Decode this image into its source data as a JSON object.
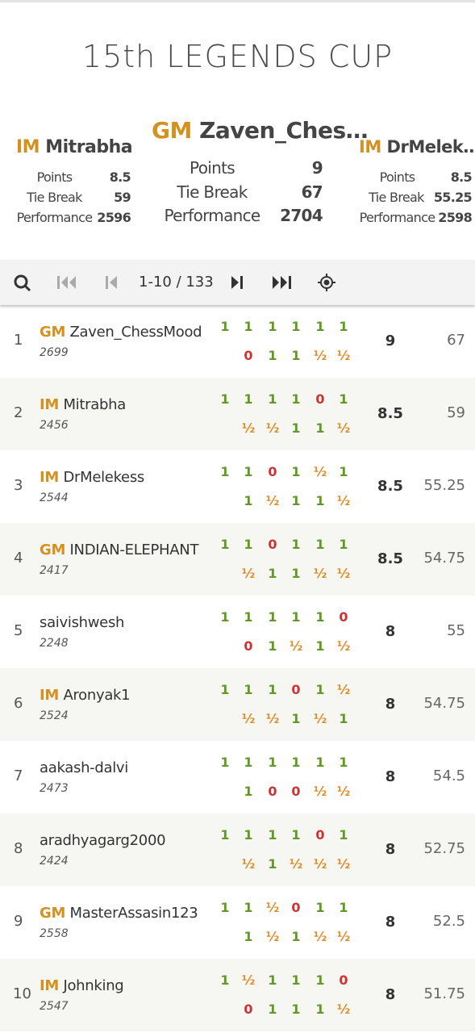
{
  "title": "15th LEGENDS CUP",
  "podium": [
    {
      "title": "IM",
      "name": "Mitrabha",
      "stats": [
        {
          "label": "Points",
          "value": 8.5
        },
        {
          "label": "Tie Break",
          "value": 59
        },
        {
          "label": "Performance",
          "value": 2596
        }
      ]
    },
    {
      "title": "GM",
      "name": "Zaven_Ches…",
      "stats": [
        {
          "label": "Points",
          "value": 9
        },
        {
          "label": "Tie Break",
          "value": 67
        },
        {
          "label": "Performance",
          "value": 2704
        }
      ]
    },
    {
      "title": "IM",
      "name": "DrMelek…",
      "stats": [
        {
          "label": "Points",
          "value": 8.5
        },
        {
          "label": "Tie Break",
          "value": 55.25
        },
        {
          "label": "Performance",
          "value": 2598
        }
      ]
    }
  ],
  "pager": {
    "range": "1-10 / 133"
  },
  "rows": [
    {
      "rank": 1,
      "title": "GM",
      "name": "Zaven_ChessMood",
      "rating": 2699,
      "results": [
        [
          "1",
          "1",
          "1",
          "1",
          "1",
          "1"
        ],
        [
          "0",
          "1",
          "1",
          "½",
          "½"
        ]
      ],
      "points": 9,
      "tiebreak": 67
    },
    {
      "rank": 2,
      "title": "IM",
      "name": "Mitrabha",
      "rating": 2456,
      "results": [
        [
          "1",
          "1",
          "1",
          "1",
          "0",
          "1"
        ],
        [
          "½",
          "½",
          "1",
          "1",
          "½"
        ]
      ],
      "points": 8.5,
      "tiebreak": 59
    },
    {
      "rank": 3,
      "title": "IM",
      "name": "DrMelekess",
      "rating": 2544,
      "results": [
        [
          "1",
          "1",
          "0",
          "1",
          "½",
          "1"
        ],
        [
          "1",
          "½",
          "1",
          "1",
          "½"
        ]
      ],
      "points": 8.5,
      "tiebreak": 55.25
    },
    {
      "rank": 4,
      "title": "GM",
      "name": "INDIAN-ELEPHANT",
      "rating": 2417,
      "results": [
        [
          "1",
          "1",
          "0",
          "1",
          "1",
          "1"
        ],
        [
          "½",
          "1",
          "1",
          "½",
          "½"
        ]
      ],
      "points": 8.5,
      "tiebreak": 54.75
    },
    {
      "rank": 5,
      "name": "saivishwesh",
      "rating": 2248,
      "results": [
        [
          "1",
          "1",
          "1",
          "1",
          "1",
          "0"
        ],
        [
          "0",
          "1",
          "½",
          "1",
          "½"
        ]
      ],
      "points": 8,
      "tiebreak": 55
    },
    {
      "rank": 6,
      "title": "IM",
      "name": "Aronyak1",
      "rating": 2524,
      "results": [
        [
          "1",
          "1",
          "1",
          "0",
          "1",
          "½"
        ],
        [
          "½",
          "½",
          "1",
          "½",
          "1"
        ]
      ],
      "points": 8,
      "tiebreak": 54.75
    },
    {
      "rank": 7,
      "name": "aakash-dalvi",
      "rating": 2473,
      "results": [
        [
          "1",
          "1",
          "1",
          "1",
          "1",
          "1"
        ],
        [
          "1",
          "0",
          "0",
          "½",
          "½"
        ]
      ],
      "points": 8,
      "tiebreak": 54.5
    },
    {
      "rank": 8,
      "name": "aradhyagarg2000",
      "rating": 2424,
      "results": [
        [
          "1",
          "1",
          "1",
          "1",
          "0",
          "1"
        ],
        [
          "½",
          "1",
          "½",
          "½",
          "½"
        ]
      ],
      "points": 8,
      "tiebreak": 52.75
    },
    {
      "rank": 9,
      "title": "GM",
      "name": "MasterAssasin123",
      "rating": 2558,
      "results": [
        [
          "1",
          "1",
          "½",
          "0",
          "1",
          "1"
        ],
        [
          "1",
          "½",
          "1",
          "½",
          "½"
        ]
      ],
      "points": 8,
      "tiebreak": 52.5
    },
    {
      "rank": 10,
      "title": "IM",
      "name": "Johnking",
      "rating": 2547,
      "results": [
        [
          "1",
          "½",
          "1",
          "1",
          "1",
          "0"
        ],
        [
          "0",
          "1",
          "1",
          "1",
          "½"
        ]
      ],
      "points": 8,
      "tiebreak": 51.75
    }
  ]
}
